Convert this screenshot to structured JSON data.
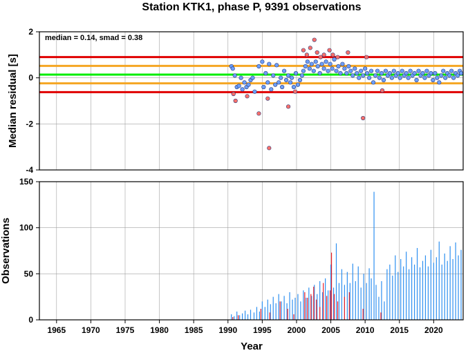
{
  "chart_data": [
    {
      "type": "scatter",
      "title": "Station KTK1, phase P, 9391 observations",
      "ylabel": "Median residual [s]",
      "annotation": "median = 0.14, smad = 0.38",
      "xlim": [
        1962.5,
        2024.3
      ],
      "ylim": [
        -4,
        2
      ],
      "yticks": [
        "2",
        "0",
        "-2",
        "-4"
      ],
      "grid": true,
      "reference_lines": [
        {
          "y": 0.14,
          "color": "#00ee00"
        },
        {
          "y": 0.52,
          "color": "#f5a623"
        },
        {
          "y": -0.24,
          "color": "#f5a623"
        },
        {
          "y": 0.9,
          "color": "#e00000"
        },
        {
          "y": -0.62,
          "color": "#e00000"
        }
      ],
      "series": [
        {
          "color": "#6c9ef8",
          "points": [
            [
              1990.5,
              0.5
            ],
            [
              1990.7,
              0.4
            ],
            [
              1991.0,
              0.1
            ],
            [
              1991.3,
              -0.4
            ],
            [
              1991.6,
              -0.35
            ],
            [
              1991.9,
              0.0
            ],
            [
              1992.1,
              -0.5
            ],
            [
              1992.4,
              -0.2
            ],
            [
              1992.7,
              -0.4
            ],
            [
              1993.0,
              -0.3
            ],
            [
              1993.3,
              -0.1
            ],
            [
              1993.6,
              0.0
            ],
            [
              1993.9,
              -0.6
            ],
            [
              1994.5,
              0.5
            ],
            [
              1995.0,
              0.7
            ],
            [
              1995.2,
              -0.4
            ],
            [
              1995.5,
              0.2
            ],
            [
              1995.8,
              -0.2
            ],
            [
              1996.0,
              0.6
            ],
            [
              1996.3,
              -0.5
            ],
            [
              1996.6,
              0.1
            ],
            [
              1996.9,
              -0.3
            ],
            [
              1997.1,
              0.55
            ],
            [
              1997.4,
              -0.2
            ],
            [
              1997.7,
              0.0
            ],
            [
              1997.9,
              -0.4
            ],
            [
              1998.2,
              0.3
            ],
            [
              1998.5,
              -0.1
            ],
            [
              1998.8,
              0.1
            ],
            [
              1999.1,
              -0.2
            ],
            [
              1999.3,
              0.0
            ],
            [
              1999.6,
              -0.4
            ],
            [
              1999.9,
              0.2
            ],
            [
              2000.2,
              -0.3
            ],
            [
              2000.5,
              -0.1
            ],
            [
              2000.8,
              0.1
            ],
            [
              2001.0,
              0.3
            ],
            [
              2001.3,
              0.5
            ],
            [
              2001.6,
              0.7
            ],
            [
              2001.9,
              0.4
            ],
            [
              2002.2,
              0.6
            ],
            [
              2002.5,
              0.3
            ],
            [
              2002.8,
              0.7
            ],
            [
              2003.1,
              0.5
            ],
            [
              2003.4,
              0.2
            ],
            [
              2003.7,
              0.6
            ],
            [
              2004.0,
              0.4
            ],
            [
              2004.3,
              0.7
            ],
            [
              2004.6,
              0.3
            ],
            [
              2004.9,
              0.6
            ],
            [
              2005.2,
              0.4
            ],
            [
              2005.5,
              0.8
            ],
            [
              2005.8,
              0.3
            ],
            [
              2006.1,
              0.5
            ],
            [
              2006.4,
              0.2
            ],
            [
              2006.7,
              0.6
            ],
            [
              2007.0,
              0.4
            ],
            [
              2007.3,
              0.2
            ],
            [
              2007.6,
              0.5
            ],
            [
              2007.9,
              0.3
            ],
            [
              2008.2,
              0.1
            ],
            [
              2008.5,
              0.4
            ],
            [
              2008.8,
              0.2
            ],
            [
              2009.1,
              0.0
            ],
            [
              2009.4,
              0.3
            ],
            [
              2009.7,
              0.1
            ],
            [
              2010.0,
              0.4
            ],
            [
              2010.3,
              0.2
            ],
            [
              2010.6,
              0.0
            ],
            [
              2010.9,
              0.3
            ],
            [
              2011.2,
              -0.2
            ],
            [
              2011.5,
              0.1
            ],
            [
              2011.8,
              0.3
            ],
            [
              2012.1,
              0.0
            ],
            [
              2012.4,
              0.2
            ],
            [
              2012.7,
              -0.1
            ],
            [
              2013.0,
              0.3
            ],
            [
              2013.3,
              0.1
            ],
            [
              2013.6,
              0.2
            ],
            [
              2013.9,
              0.0
            ],
            [
              2014.2,
              0.3
            ],
            [
              2014.5,
              0.1
            ],
            [
              2014.8,
              0.2
            ],
            [
              2015.1,
              0.0
            ],
            [
              2015.4,
              0.3
            ],
            [
              2015.7,
              0.1
            ],
            [
              2016.0,
              0.2
            ],
            [
              2016.3,
              0.0
            ],
            [
              2016.6,
              0.3
            ],
            [
              2016.9,
              0.1
            ],
            [
              2017.2,
              0.2
            ],
            [
              2017.5,
              -0.1
            ],
            [
              2017.8,
              0.3
            ],
            [
              2018.1,
              0.1
            ],
            [
              2018.4,
              0.2
            ],
            [
              2018.7,
              0.0
            ],
            [
              2019.0,
              0.3
            ],
            [
              2019.3,
              0.1
            ],
            [
              2019.6,
              0.2
            ],
            [
              2019.9,
              -0.1
            ],
            [
              2020.2,
              0.2
            ],
            [
              2020.5,
              0.0
            ],
            [
              2020.8,
              -0.2
            ],
            [
              2021.1,
              0.1
            ],
            [
              2021.4,
              0.3
            ],
            [
              2021.7,
              0.0
            ],
            [
              2022.0,
              0.2
            ],
            [
              2022.3,
              0.1
            ],
            [
              2022.6,
              0.3
            ],
            [
              2022.9,
              0.0
            ],
            [
              2023.2,
              0.2
            ],
            [
              2023.5,
              0.1
            ],
            [
              2023.8,
              0.3
            ],
            [
              2024.0,
              0.2
            ]
          ]
        },
        {
          "color": "#f8706a",
          "points": [
            [
              1990.8,
              -0.7
            ],
            [
              1991.1,
              -1.0
            ],
            [
              1992.8,
              -0.8
            ],
            [
              1994.5,
              -1.55
            ],
            [
              1995.8,
              -0.9
            ],
            [
              1996.0,
              -3.05
            ],
            [
              1998.8,
              -1.25
            ],
            [
              1999.8,
              -0.6
            ],
            [
              2001.0,
              1.2
            ],
            [
              2001.5,
              1.0
            ],
            [
              2002.0,
              1.3
            ],
            [
              2002.6,
              1.65
            ],
            [
              2003.0,
              1.1
            ],
            [
              2003.5,
              0.9
            ],
            [
              2004.0,
              1.0
            ],
            [
              2004.8,
              1.2
            ],
            [
              2005.3,
              1.0
            ],
            [
              2006.0,
              0.9
            ],
            [
              2007.5,
              1.1
            ],
            [
              2009.7,
              -1.75
            ],
            [
              2010.2,
              0.9
            ],
            [
              2012.5,
              -0.55
            ]
          ]
        }
      ]
    },
    {
      "type": "bar",
      "ylabel": "Observations",
      "xlabel": "Year",
      "xlim": [
        1962.5,
        2024.3
      ],
      "ylim": [
        0,
        150
      ],
      "yticks": [
        "150",
        "100",
        "50",
        "0"
      ],
      "xticks": [
        "1965",
        "1970",
        "1975",
        "1980",
        "1985",
        "1990",
        "1995",
        "2000",
        "2005",
        "2010",
        "2015",
        "2020"
      ],
      "grid": true,
      "series": [
        {
          "color": "#2d8ff0",
          "points": [
            [
              1990.5,
              6
            ],
            [
              1990.9,
              4
            ],
            [
              1991.3,
              9
            ],
            [
              1991.7,
              5
            ],
            [
              1992.1,
              7
            ],
            [
              1992.5,
              10
            ],
            [
              1992.9,
              6
            ],
            [
              1993.3,
              11
            ],
            [
              1993.8,
              8
            ],
            [
              1994.2,
              14
            ],
            [
              1994.6,
              9
            ],
            [
              1995.0,
              20
            ],
            [
              1995.4,
              14
            ],
            [
              1995.8,
              22
            ],
            [
              1996.2,
              17
            ],
            [
              1996.6,
              25
            ],
            [
              1997.0,
              18
            ],
            [
              1997.4,
              28
            ],
            [
              1997.8,
              20
            ],
            [
              1998.2,
              26
            ],
            [
              1998.6,
              18
            ],
            [
              1999.0,
              30
            ],
            [
              1999.4,
              22
            ],
            [
              1999.8,
              24
            ],
            [
              2000.2,
              28
            ],
            [
              2000.6,
              20
            ],
            [
              2001.0,
              32
            ],
            [
              2001.4,
              24
            ],
            [
              2001.8,
              35
            ],
            [
              2002.2,
              26
            ],
            [
              2002.6,
              38
            ],
            [
              2003.0,
              28
            ],
            [
              2003.4,
              42
            ],
            [
              2003.8,
              30
            ],
            [
              2004.2,
              45
            ],
            [
              2004.6,
              32
            ],
            [
              2005.0,
              60
            ],
            [
              2005.4,
              35
            ],
            [
              2005.8,
              83
            ],
            [
              2006.2,
              40
            ],
            [
              2006.6,
              55
            ],
            [
              2007.0,
              38
            ],
            [
              2007.4,
              52
            ],
            [
              2007.8,
              40
            ],
            [
              2008.2,
              61
            ],
            [
              2008.6,
              42
            ],
            [
              2009.0,
              58
            ],
            [
              2009.4,
              35
            ],
            [
              2009.8,
              50
            ],
            [
              2010.2,
              40
            ],
            [
              2010.6,
              56
            ],
            [
              2010.9,
              45
            ],
            [
              2011.3,
              139
            ],
            [
              2011.6,
              38
            ],
            [
              2012.0,
              25
            ],
            [
              2012.4,
              42
            ],
            [
              2012.8,
              20
            ],
            [
              2013.2,
              55
            ],
            [
              2013.6,
              60
            ],
            [
              2014.0,
              48
            ],
            [
              2014.4,
              70
            ],
            [
              2014.8,
              52
            ],
            [
              2015.2,
              66
            ],
            [
              2015.6,
              58
            ],
            [
              2016.0,
              74
            ],
            [
              2016.4,
              55
            ],
            [
              2016.8,
              68
            ],
            [
              2017.2,
              60
            ],
            [
              2017.6,
              78
            ],
            [
              2018.0,
              57
            ],
            [
              2018.4,
              64
            ],
            [
              2018.8,
              70
            ],
            [
              2019.2,
              58
            ],
            [
              2019.6,
              76
            ],
            [
              2020.0,
              62
            ],
            [
              2020.4,
              68
            ],
            [
              2020.8,
              85
            ],
            [
              2021.2,
              60
            ],
            [
              2021.6,
              72
            ],
            [
              2022.0,
              64
            ],
            [
              2022.4,
              80
            ],
            [
              2022.8,
              66
            ],
            [
              2023.2,
              84
            ],
            [
              2023.6,
              70
            ],
            [
              2024.0,
              76
            ]
          ]
        },
        {
          "color": "#e8202a",
          "points": [
            [
              1990.7,
              3
            ],
            [
              1991.5,
              5
            ],
            [
              1994.8,
              12
            ],
            [
              1996.1,
              8
            ],
            [
              1997.6,
              20
            ],
            [
              1998.7,
              12
            ],
            [
              1999.6,
              6
            ],
            [
              2001.2,
              30
            ],
            [
              2001.6,
              24
            ],
            [
              2002.1,
              28
            ],
            [
              2002.5,
              36
            ],
            [
              2002.9,
              22
            ],
            [
              2003.4,
              14
            ],
            [
              2003.9,
              40
            ],
            [
              2004.4,
              26
            ],
            [
              2004.9,
              32
            ],
            [
              2005.1,
              73
            ],
            [
              2005.5,
              28
            ],
            [
              2006.0,
              20
            ],
            [
              2007.0,
              25
            ],
            [
              2007.7,
              30
            ],
            [
              2009.7,
              12
            ],
            [
              2012.3,
              8
            ]
          ]
        }
      ]
    }
  ]
}
